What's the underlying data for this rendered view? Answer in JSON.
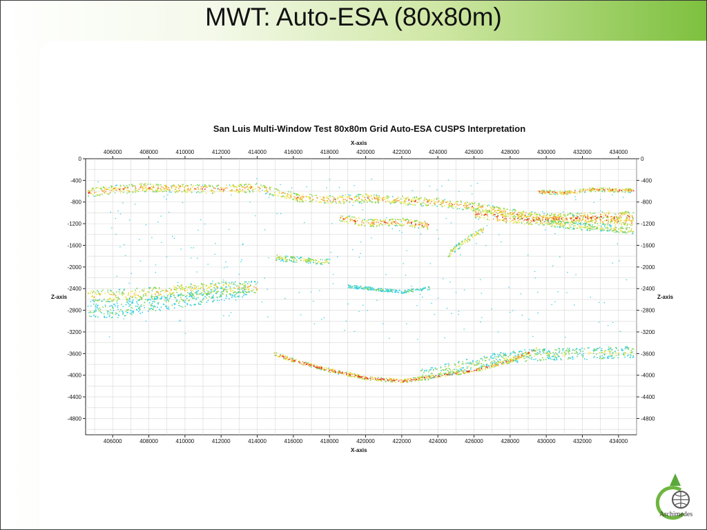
{
  "slide": {
    "title": "MWT: Auto-ESA (80x80m)",
    "logo_text": "Archimedes"
  },
  "colors": {
    "header_gradient_end": "#7dc03e",
    "cyan": "#2fd0e8",
    "green": "#7fd35a",
    "yellow": "#e8e23c",
    "orange": "#f29a2b",
    "red": "#d9241f"
  },
  "chart_data": {
    "type": "scatter",
    "title": "San Luis Multi-Window Test 80x80m Grid Auto-ESA CUSPS Interpretation",
    "xlabel": "X-axis",
    "ylabel": "Z-axis",
    "xlim": [
      404500,
      435000
    ],
    "ylim": [
      -5100,
      0
    ],
    "x_ticks": [
      406000,
      408000,
      410000,
      412000,
      414000,
      416000,
      418000,
      420000,
      422000,
      424000,
      426000,
      428000,
      430000,
      432000,
      434000
    ],
    "x_tick_labels": [
      "406000",
      "408000",
      "410000",
      "412000",
      "414000",
      "416000",
      "418000",
      "420000",
      "422000",
      "424000",
      "426000",
      "428000",
      "430000",
      "432000",
      "434000"
    ],
    "y_ticks": [
      0,
      -400,
      -800,
      -1200,
      -1600,
      -2000,
      -2400,
      -2800,
      -3200,
      -3600,
      -4000,
      -4400,
      -4800
    ],
    "y_tick_labels": [
      "0",
      "-400",
      "-800",
      "-1200",
      "-1600",
      "-2000",
      "-2400",
      "-2800",
      "-3200",
      "-3600",
      "-4000",
      "-4400",
      "-4800"
    ],
    "grid": true,
    "axes_labeled_on": "top, bottom, left, right",
    "color_scale": [
      "cyan",
      "green",
      "yellow",
      "orange",
      "red"
    ],
    "bands": [
      {
        "x": [
          404600,
          406000,
          408000,
          410000,
          412000,
          414000
        ],
        "z": [
          -620,
          -560,
          -520,
          -540,
          -560,
          -520
        ],
        "thickness": 160,
        "intensity": 0.75
      },
      {
        "x": [
          414000,
          416000,
          418000,
          420000,
          422000,
          424000,
          426000,
          428000,
          430000,
          432000,
          434800
        ],
        "z": [
          -520,
          -700,
          -750,
          -720,
          -760,
          -800,
          -880,
          -1000,
          -1080,
          -1120,
          -1150
        ],
        "thickness": 160,
        "intensity": 0.7
      },
      {
        "x": [
          418500,
          420000,
          422000,
          423500
        ],
        "z": [
          -1080,
          -1180,
          -1160,
          -1230
        ],
        "thickness": 140,
        "intensity": 0.8
      },
      {
        "x": [
          426000,
          428000,
          430000,
          432000,
          434800
        ],
        "z": [
          -1000,
          -1100,
          -1120,
          -1080,
          -1060
        ],
        "thickness": 200,
        "intensity": 0.85
      },
      {
        "x": [
          430000,
          432000,
          434800
        ],
        "z": [
          -1180,
          -1250,
          -1320
        ],
        "thickness": 120,
        "intensity": 0.5
      },
      {
        "x": [
          429500,
          431000,
          432500,
          434800
        ],
        "z": [
          -600,
          -620,
          -560,
          -580
        ],
        "thickness": 70,
        "intensity": 0.8
      },
      {
        "x": [
          424500,
          425500,
          426500
        ],
        "z": [
          -1780,
          -1500,
          -1300
        ],
        "thickness": 110,
        "intensity": 0.55
      },
      {
        "x": [
          404600,
          406000,
          408000,
          410000,
          412000,
          414000
        ],
        "z": [
          -2520,
          -2520,
          -2480,
          -2420,
          -2380,
          -2360
        ],
        "thickness": 220,
        "intensity": 0.6
      },
      {
        "x": [
          404600,
          406000,
          408000,
          410000,
          412000,
          413500
        ],
        "z": [
          -2800,
          -2800,
          -2700,
          -2600,
          -2480,
          -2400
        ],
        "thickness": 260,
        "intensity": 0.25
      },
      {
        "x": [
          415000,
          416000,
          417000,
          418000
        ],
        "z": [
          -1820,
          -1850,
          -1880,
          -1900
        ],
        "thickness": 110,
        "intensity": 0.45
      },
      {
        "x": [
          419000,
          420500,
          422000,
          423500
        ],
        "z": [
          -2350,
          -2400,
          -2450,
          -2380
        ],
        "thickness": 60,
        "intensity": 0.2
      },
      {
        "x": [
          414800,
          416000,
          418000,
          420000,
          422000,
          424000,
          426000,
          428000,
          429500
        ],
        "z": [
          -3580,
          -3720,
          -3900,
          -4040,
          -4100,
          -4000,
          -3900,
          -3720,
          -3500
        ],
        "thickness": 70,
        "intensity": 0.9
      },
      {
        "x": [
          423000,
          425000,
          427000,
          429000,
          431000,
          433000,
          434800
        ],
        "z": [
          -4000,
          -3850,
          -3700,
          -3620,
          -3600,
          -3580,
          -3560
        ],
        "thickness": 220,
        "intensity": 0.35
      }
    ]
  }
}
